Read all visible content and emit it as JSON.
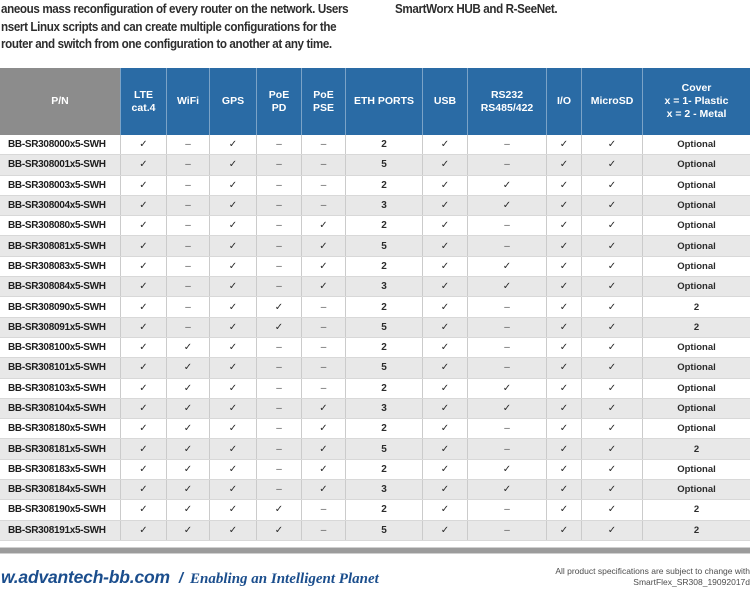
{
  "intro": {
    "left_lines": [
      "aneous mass reconfiguration of every router on the network. Users",
      "nsert Linux scripts and can create multiple configurations for the",
      "router and switch from one configuration to another at any time."
    ],
    "right_line": "SmartWorx HUB and R-SeeNet."
  },
  "table": {
    "columns": [
      {
        "key": "pn",
        "label": "P/N"
      },
      {
        "key": "lte-cat4",
        "label": "LTE\ncat.4"
      },
      {
        "key": "wifi",
        "label": "WiFi"
      },
      {
        "key": "gps",
        "label": "GPS"
      },
      {
        "key": "poe-pd",
        "label": "PoE\nPD"
      },
      {
        "key": "poe-pse",
        "label": "PoE\nPSE"
      },
      {
        "key": "eth-ports",
        "label": "ETH PORTS"
      },
      {
        "key": "usb",
        "label": "USB"
      },
      {
        "key": "rs232-rs485-422",
        "label": "RS232\nRS485/422"
      },
      {
        "key": "io",
        "label": "I/O"
      },
      {
        "key": "microsd",
        "label": "MicroSD"
      },
      {
        "key": "cover",
        "label": "Cover\nx = 1- Plastic\nx = 2 - Metal"
      }
    ],
    "check_symbol": "✓",
    "none_symbol": "–",
    "rows": [
      {
        "pn": "BB-SR308000x5-SWH",
        "cells": [
          "✓",
          "–",
          "✓",
          "–",
          "–",
          "2",
          "✓",
          "–",
          "✓",
          "✓",
          "Optional"
        ]
      },
      {
        "pn": "BB-SR308001x5-SWH",
        "cells": [
          "✓",
          "–",
          "✓",
          "–",
          "–",
          "5",
          "✓",
          "–",
          "✓",
          "✓",
          "Optional"
        ]
      },
      {
        "pn": "BB-SR308003x5-SWH",
        "cells": [
          "✓",
          "–",
          "✓",
          "–",
          "–",
          "2",
          "✓",
          "✓",
          "✓",
          "✓",
          "Optional"
        ]
      },
      {
        "pn": "BB-SR308004x5-SWH",
        "cells": [
          "✓",
          "–",
          "✓",
          "–",
          "–",
          "3",
          "✓",
          "✓",
          "✓",
          "✓",
          "Optional"
        ]
      },
      {
        "pn": "BB-SR308080x5-SWH",
        "cells": [
          "✓",
          "–",
          "✓",
          "–",
          "✓",
          "2",
          "✓",
          "–",
          "✓",
          "✓",
          "Optional"
        ]
      },
      {
        "pn": "BB-SR308081x5-SWH",
        "cells": [
          "✓",
          "–",
          "✓",
          "–",
          "✓",
          "5",
          "✓",
          "–",
          "✓",
          "✓",
          "Optional"
        ]
      },
      {
        "pn": "BB-SR308083x5-SWH",
        "cells": [
          "✓",
          "–",
          "✓",
          "–",
          "✓",
          "2",
          "✓",
          "✓",
          "✓",
          "✓",
          "Optional"
        ]
      },
      {
        "pn": "BB-SR308084x5-SWH",
        "cells": [
          "✓",
          "–",
          "✓",
          "–",
          "✓",
          "3",
          "✓",
          "✓",
          "✓",
          "✓",
          "Optional"
        ]
      },
      {
        "pn": "BB-SR308090x5-SWH",
        "cells": [
          "✓",
          "–",
          "✓",
          "✓",
          "–",
          "2",
          "✓",
          "–",
          "✓",
          "✓",
          "2"
        ]
      },
      {
        "pn": "BB-SR308091x5-SWH",
        "cells": [
          "✓",
          "–",
          "✓",
          "✓",
          "–",
          "5",
          "✓",
          "–",
          "✓",
          "✓",
          "2"
        ]
      },
      {
        "pn": "BB-SR308100x5-SWH",
        "cells": [
          "✓",
          "✓",
          "✓",
          "–",
          "–",
          "2",
          "✓",
          "–",
          "✓",
          "✓",
          "Optional"
        ]
      },
      {
        "pn": "BB-SR308101x5-SWH",
        "cells": [
          "✓",
          "✓",
          "✓",
          "–",
          "–",
          "5",
          "✓",
          "–",
          "✓",
          "✓",
          "Optional"
        ]
      },
      {
        "pn": "BB-SR308103x5-SWH",
        "cells": [
          "✓",
          "✓",
          "✓",
          "–",
          "–",
          "2",
          "✓",
          "✓",
          "✓",
          "✓",
          "Optional"
        ]
      },
      {
        "pn": "BB-SR308104x5-SWH",
        "cells": [
          "✓",
          "✓",
          "✓",
          "–",
          "✓",
          "3",
          "✓",
          "✓",
          "✓",
          "✓",
          "Optional"
        ]
      },
      {
        "pn": "BB-SR308180x5-SWH",
        "cells": [
          "✓",
          "✓",
          "✓",
          "–",
          "✓",
          "2",
          "✓",
          "–",
          "✓",
          "✓",
          "Optional"
        ]
      },
      {
        "pn": "BB-SR308181x5-SWH",
        "cells": [
          "✓",
          "✓",
          "✓",
          "–",
          "✓",
          "5",
          "✓",
          "–",
          "✓",
          "✓",
          "2"
        ]
      },
      {
        "pn": "BB-SR308183x5-SWH",
        "cells": [
          "✓",
          "✓",
          "✓",
          "–",
          "✓",
          "2",
          "✓",
          "✓",
          "✓",
          "✓",
          "Optional"
        ]
      },
      {
        "pn": "BB-SR308184x5-SWH",
        "cells": [
          "✓",
          "✓",
          "✓",
          "–",
          "✓",
          "3",
          "✓",
          "✓",
          "✓",
          "✓",
          "Optional"
        ]
      },
      {
        "pn": "BB-SR308190x5-SWH",
        "cells": [
          "✓",
          "✓",
          "✓",
          "✓",
          "–",
          "2",
          "✓",
          "–",
          "✓",
          "✓",
          "2"
        ]
      },
      {
        "pn": "BB-SR308191x5-SWH",
        "cells": [
          "✓",
          "✓",
          "✓",
          "✓",
          "–",
          "5",
          "✓",
          "–",
          "✓",
          "✓",
          "2"
        ]
      }
    ]
  },
  "footer": {
    "website": "w.advantech-bb.com",
    "divider": "/",
    "tagline": "Enabling an Intelligent Planet",
    "note_line1": "All product specifications are subject to change with",
    "note_line2": "SmartFlex_SR308_19092017d"
  },
  "colors": {
    "header_blue": "#2a6ba5",
    "header_gray": "#8c8c8c",
    "row_alt": "#e8e8e8",
    "bar_gray": "#9b9b9b",
    "footer_blue": "#1b4e8d"
  }
}
